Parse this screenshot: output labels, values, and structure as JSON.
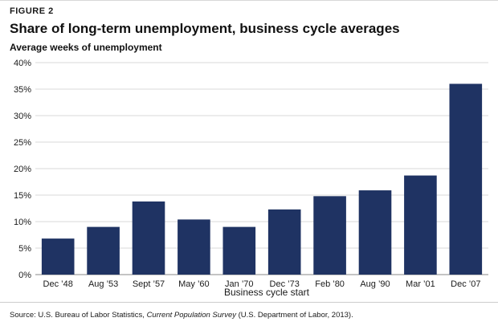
{
  "figure_label": "FIGURE 2",
  "chart_data": {
    "type": "bar",
    "title": "Share of long-term unemployment, business cycle averages",
    "ylabel": "Average weeks of unemployment",
    "xlabel": "Business cycle start",
    "categories": [
      "Dec ’48",
      "Aug ’53",
      "Sept ’57",
      "May ’60",
      "Jan ’70",
      "Dec ’73",
      "Feb ’80",
      "Aug ’90",
      "Mar ’01",
      "Dec ’07"
    ],
    "values": [
      6.8,
      9.0,
      13.8,
      10.4,
      9.0,
      12.3,
      14.8,
      15.9,
      18.7,
      36.0
    ],
    "ylim": [
      0,
      40
    ],
    "yticks": [
      0,
      5,
      10,
      15,
      20,
      25,
      30,
      35,
      40
    ],
    "ytick_labels": [
      "0%",
      "5%",
      "10%",
      "15%",
      "20%",
      "25%",
      "30%",
      "35%",
      "40%"
    ],
    "bar_color": "#1f3363",
    "grid": true
  },
  "source": {
    "prefix": "Source: U.S. Bureau of Labor Statistics, ",
    "title": "Current Population Survey",
    "suffix": " (U.S. Department of Labor, 2013)."
  }
}
